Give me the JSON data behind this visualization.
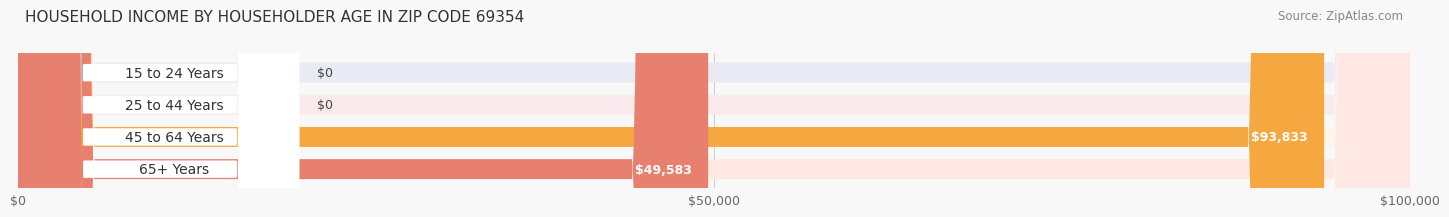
{
  "title": "HOUSEHOLD INCOME BY HOUSEHOLDER AGE IN ZIP CODE 69354",
  "source": "Source: ZipAtlas.com",
  "categories": [
    "15 to 24 Years",
    "25 to 44 Years",
    "45 to 64 Years",
    "65+ Years"
  ],
  "values": [
    0,
    0,
    93833,
    49583
  ],
  "value_labels": [
    "$0",
    "$0",
    "$93,833",
    "$49,583"
  ],
  "bar_colors": [
    "#b0b0d8",
    "#f0a0b8",
    "#f5a840",
    "#e88070"
  ],
  "bg_colors": [
    "#eaeaf4",
    "#faeaee",
    "#fef4e8",
    "#fde8e4"
  ],
  "xlim": [
    0,
    100000
  ],
  "xticks": [
    0,
    50000,
    100000
  ],
  "xtick_labels": [
    "$0",
    "$50,000",
    "$100,000"
  ],
  "title_fontsize": 11,
  "source_fontsize": 8.5,
  "label_fontsize": 10,
  "value_fontsize": 9,
  "background_color": "#f8f8f8"
}
